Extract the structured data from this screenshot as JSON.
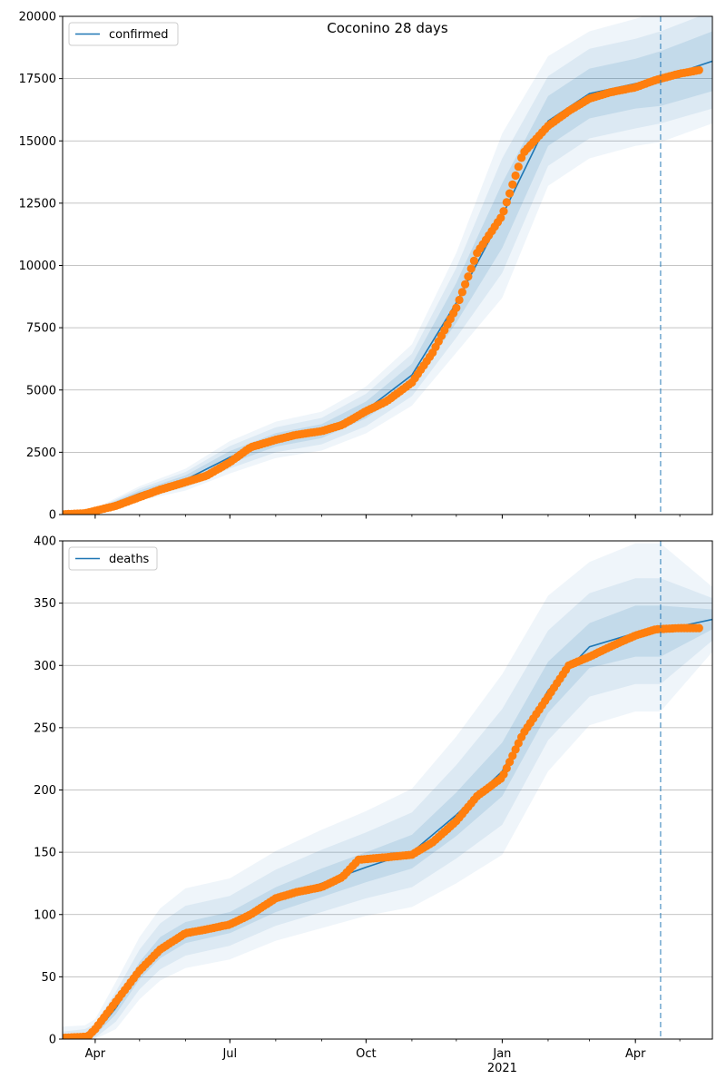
{
  "chart_data": [
    {
      "type": "line",
      "title": "Coconino 28 days",
      "xlabel": "",
      "ylabel": "",
      "ylim": [
        0,
        20000
      ],
      "xlim": [
        "2020-03-10",
        "2021-05-23"
      ],
      "yticks": [
        "0",
        "2500",
        "5000",
        "7500",
        "10000",
        "12500",
        "15000",
        "17500",
        "20000"
      ],
      "xticks": [
        {
          "date": "2020-04-01",
          "label": "Apr",
          "sub": ""
        },
        {
          "date": "2020-07-01",
          "label": "Jul",
          "sub": ""
        },
        {
          "date": "2020-10-01",
          "label": "Oct",
          "sub": ""
        },
        {
          "date": "2021-01-01",
          "label": "Jan",
          "sub": "2021"
        },
        {
          "date": "2021-04-01",
          "label": "Apr",
          "sub": ""
        }
      ],
      "grid": "horizontal",
      "legend": {
        "placement": "top-left",
        "entries": [
          "confirmed"
        ]
      },
      "forecast_start": "2021-04-18",
      "colors": {
        "model": "#1f77b4",
        "observed": "#ff7f0e",
        "band": "#1f77b4"
      },
      "series": [
        {
          "name": "confirmed",
          "kind": "model",
          "x": [
            "2020-03-10",
            "2020-04-01",
            "2020-05-01",
            "2020-06-01",
            "2020-07-01",
            "2020-08-01",
            "2020-09-01",
            "2020-10-01",
            "2020-11-01",
            "2020-12-01",
            "2021-01-01",
            "2021-02-01",
            "2021-03-01",
            "2021-04-01",
            "2021-04-18",
            "2021-05-23"
          ],
          "y": [
            30,
            150,
            850,
            1400,
            2300,
            3000,
            3350,
            4200,
            5600,
            8500,
            12000,
            15800,
            16900,
            17300,
            17500,
            18200
          ],
          "bands": [
            {
              "lower": [
                0,
                110,
                740,
                1230,
                2050,
                2730,
                3070,
                3860,
                5150,
                7700,
                10700,
                14800,
                15900,
                16300,
                16400,
                17000
              ],
              "upper": [
                60,
                190,
                960,
                1570,
                2550,
                3270,
                3630,
                4540,
                6050,
                9300,
                13300,
                16800,
                17900,
                18300,
                18600,
                19400
              ]
            },
            {
              "lower": [
                0,
                80,
                650,
                1090,
                1850,
                2500,
                2820,
                3550,
                4750,
                7100,
                9700,
                14000,
                15100,
                15500,
                15700,
                16300
              ],
              "upper": [
                90,
                220,
                1050,
                1710,
                2750,
                3500,
                3880,
                4850,
                6450,
                9900,
                14300,
                17600,
                18700,
                19100,
                19400,
                20200
              ]
            },
            {
              "lower": [
                0,
                50,
                560,
                960,
                1650,
                2270,
                2570,
                3260,
                4370,
                6500,
                8700,
                13200,
                14300,
                14800,
                14950,
                15700
              ],
              "upper": [
                120,
                250,
                1140,
                1840,
                2950,
                3730,
                4130,
                5140,
                6830,
                10500,
                15300,
                18400,
                19400,
                19900,
                20200,
                21000
              ]
            }
          ]
        },
        {
          "name": "",
          "kind": "observed",
          "x": [
            "2020-03-10",
            "2020-03-25",
            "2020-04-01",
            "2020-04-15",
            "2020-05-01",
            "2020-05-15",
            "2020-06-01",
            "2020-06-15",
            "2020-07-01",
            "2020-07-15",
            "2020-08-01",
            "2020-08-15",
            "2020-09-01",
            "2020-09-15",
            "2020-10-01",
            "2020-10-15",
            "2020-11-01",
            "2020-11-15",
            "2020-12-01",
            "2020-12-15",
            "2021-01-01",
            "2021-01-15",
            "2021-02-01",
            "2021-02-15",
            "2021-03-01",
            "2021-03-15",
            "2021-04-01",
            "2021-04-15",
            "2021-05-01",
            "2021-05-15"
          ],
          "y": [
            10,
            50,
            150,
            350,
            700,
            1000,
            1300,
            1550,
            2100,
            2700,
            3000,
            3200,
            3350,
            3600,
            4150,
            4550,
            5300,
            6500,
            8300,
            10500,
            12000,
            14500,
            15600,
            16200,
            16700,
            16950,
            17150,
            17450,
            17700,
            17850
          ]
        }
      ]
    },
    {
      "type": "line",
      "title": "",
      "xlabel": "",
      "ylabel": "",
      "ylim": [
        0,
        400
      ],
      "xlim": [
        "2020-03-10",
        "2021-05-23"
      ],
      "yticks": [
        "0",
        "50",
        "100",
        "150",
        "200",
        "250",
        "300",
        "350",
        "400"
      ],
      "xticks": [
        {
          "date": "2020-04-01",
          "label": "Apr",
          "sub": ""
        },
        {
          "date": "2020-07-01",
          "label": "Jul",
          "sub": ""
        },
        {
          "date": "2020-10-01",
          "label": "Oct",
          "sub": ""
        },
        {
          "date": "2021-01-01",
          "label": "Jan",
          "sub": "2021"
        },
        {
          "date": "2021-04-01",
          "label": "Apr",
          "sub": ""
        }
      ],
      "grid": "horizontal",
      "legend": {
        "placement": "top-left",
        "entries": [
          "deaths"
        ]
      },
      "forecast_start": "2021-04-18",
      "colors": {
        "model": "#1f77b4",
        "observed": "#ff7f0e",
        "band": "#1f77b4"
      },
      "series": [
        {
          "name": "deaths",
          "kind": "model",
          "x": [
            "2020-03-10",
            "2020-03-25",
            "2020-04-01",
            "2020-04-15",
            "2020-05-01",
            "2020-05-15",
            "2020-06-01",
            "2020-07-01",
            "2020-08-01",
            "2020-09-01",
            "2020-10-01",
            "2020-11-01",
            "2020-12-01",
            "2021-01-01",
            "2021-02-01",
            "2021-03-01",
            "2021-04-01",
            "2021-04-18",
            "2021-05-23"
          ],
          "y": [
            1,
            2,
            5,
            25,
            55,
            73,
            85,
            93,
            112,
            125,
            138,
            150,
            180,
            215,
            280,
            315,
            326,
            328,
            337
          ],
          "bands": [
            {
              "lower": [
                0,
                0,
                3,
                20,
                48,
                65,
                77,
                85,
                102,
                114,
                126,
                137,
                163,
                195,
                262,
                298,
                307,
                307,
                329
              ],
              "upper": [
                3,
                5,
                8,
                30,
                62,
                82,
                94,
                102,
                122,
                137,
                150,
                164,
                198,
                238,
                303,
                334,
                348,
                348,
                345
              ]
            },
            {
              "lower": [
                0,
                0,
                1,
                14,
                40,
                56,
                67,
                75,
                91,
                102,
                113,
                122,
                145,
                172,
                240,
                275,
                285,
                285,
                320
              ],
              "upper": [
                6,
                8,
                12,
                38,
                72,
                93,
                107,
                115,
                136,
                152,
                166,
                182,
                220,
                265,
                328,
                358,
                370,
                370,
                354
              ]
            },
            {
              "lower": [
                0,
                0,
                0,
                8,
                32,
                47,
                57,
                64,
                79,
                89,
                99,
                106,
                125,
                148,
                215,
                252,
                263,
                263,
                311
              ],
              "upper": [
                10,
                11,
                16,
                46,
                82,
                105,
                121,
                129,
                151,
                168,
                183,
                201,
                243,
                293,
                356,
                383,
                398,
                398,
                363
              ]
            }
          ]
        },
        {
          "name": "",
          "kind": "observed",
          "x": [
            "2020-03-10",
            "2020-03-27",
            "2020-04-01",
            "2020-04-15",
            "2020-05-01",
            "2020-05-15",
            "2020-06-01",
            "2020-06-15",
            "2020-07-01",
            "2020-07-15",
            "2020-08-01",
            "2020-08-15",
            "2020-09-01",
            "2020-09-15",
            "2020-09-26",
            "2020-10-15",
            "2020-11-01",
            "2020-11-15",
            "2020-12-01",
            "2020-12-15",
            "2021-01-01",
            "2021-01-15",
            "2021-02-01",
            "2021-02-15",
            "2021-03-01",
            "2021-03-15",
            "2021-04-01",
            "2021-04-15",
            "2021-05-01",
            "2021-05-15"
          ],
          "y": [
            1,
            2,
            8,
            30,
            55,
            72,
            85,
            88,
            92,
            100,
            113,
            118,
            122,
            130,
            144,
            146,
            148,
            158,
            175,
            195,
            210,
            245,
            275,
            300,
            307,
            315,
            324,
            329,
            330,
            330
          ]
        }
      ]
    }
  ]
}
